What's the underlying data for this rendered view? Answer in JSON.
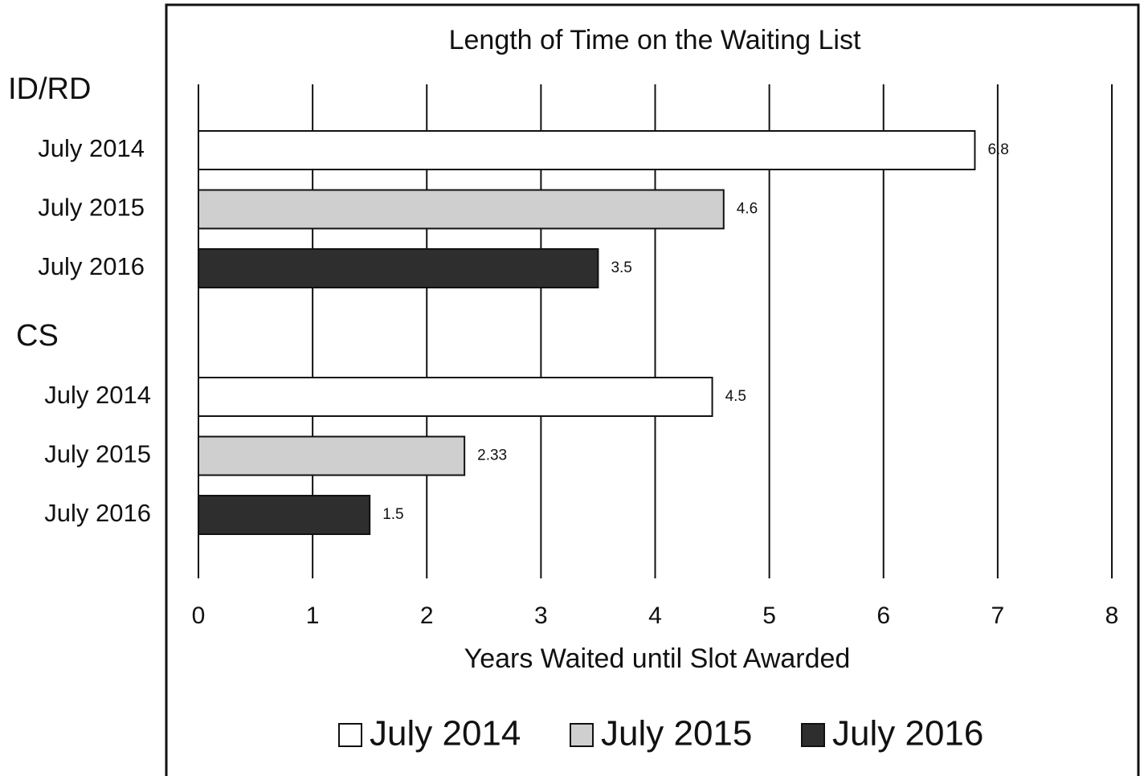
{
  "chart_data": {
    "type": "bar",
    "orientation": "horizontal",
    "title": "Length of Time on the Waiting List",
    "xlabel": "Years Waited until Slot Awarded",
    "categories": [
      "ID/RD",
      "CS"
    ],
    "series": [
      {
        "name": "July 2014",
        "color": "#ffffff",
        "values": [
          6.8,
          4.5
        ]
      },
      {
        "name": "July 2015",
        "color": "#cfcfcf",
        "values": [
          4.6,
          2.33
        ]
      },
      {
        "name": "July 2016",
        "color": "#2e2e2e",
        "values": [
          3.5,
          1.5
        ]
      }
    ],
    "xlim": [
      0,
      8
    ],
    "xticks": [
      0,
      1,
      2,
      3,
      4,
      5,
      6,
      7,
      8
    ],
    "grid": true,
    "legend": "bottom"
  }
}
